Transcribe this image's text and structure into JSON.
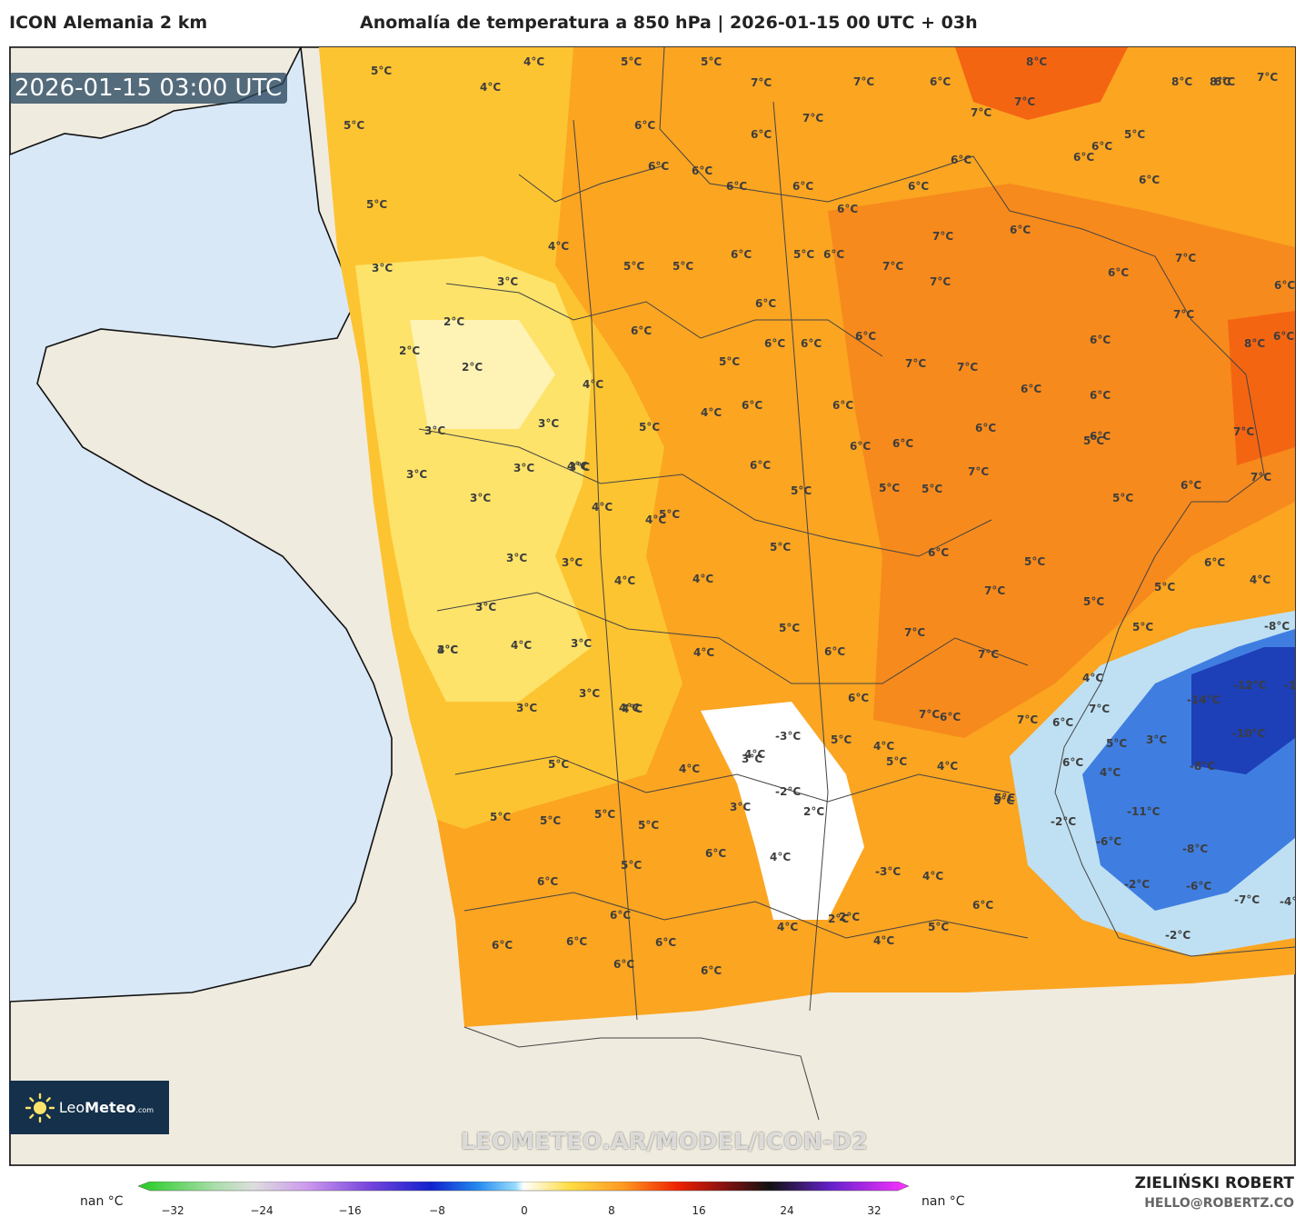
{
  "header": {
    "model": "ICON Alemania 2 km",
    "title": "Anomalía de temperatura a 850 hPa | 2026-01-15 00 UTC + 03h"
  },
  "map": {
    "timestamp": "2026-01-15 03:00 UTC",
    "watermark": "LEOMETEO.AR/MODEL/ICON-D2",
    "labels": [
      "5°C",
      "4°C",
      "5°C",
      "5°C",
      "8°C",
      "8°C",
      "8°C",
      "7°C",
      "4°C",
      "5°C",
      "6°C",
      "6°C",
      "7°C",
      "7°C",
      "5°C",
      "7°C",
      "6°C",
      "7°C",
      "6°C",
      "6°C",
      "7°C",
      "6°C",
      "6°C",
      "5°C",
      "5°C",
      "6°C",
      "6°C",
      "6°C",
      "6°C",
      "6°C",
      "6°C",
      "6°C",
      "6°C",
      "7°C",
      "6°C",
      "3°C",
      "4°C",
      "5°C",
      "5°C",
      "6°C",
      "6°C",
      "6°C",
      "7°C",
      "7°C",
      "6°C",
      "7°C",
      "7°C",
      "6°C",
      "2°C",
      "2°C",
      "2°C",
      "3°C",
      "6°C",
      "6°C",
      "6°C",
      "6°C",
      "7°C",
      "7°C",
      "6°C",
      "6°C",
      "8°C",
      "4°C",
      "5°C",
      "6°C",
      "6°C",
      "6°C",
      "5°C",
      "7°C",
      "3°C",
      "3°C",
      "4°C",
      "5°C",
      "6°C",
      "6°C",
      "6°C",
      "6°C",
      "3°C",
      "3°C",
      "3°C",
      "4°C",
      "6°C",
      "5°C",
      "5°C",
      "5°C",
      "7°C",
      "5°C",
      "6°C",
      "3°C",
      "4°C",
      "5°C",
      "4°C",
      "5°C",
      "6°C",
      "5°C",
      "7°C",
      "4°C",
      "3°C",
      "3°C",
      "4°C",
      "4°C",
      "7°C",
      "5°C",
      "5°C",
      "6°C",
      "3°C",
      "4°C",
      "3°C",
      "4°C",
      "5°C",
      "6°C",
      "7°C",
      "7°C",
      "5°C",
      "-8°C",
      "3°C",
      "3°C",
      "4°C",
      "6°C",
      "7°C",
      "4°C",
      "5°C",
      "4°C",
      "-12°C",
      "-13°C",
      "4°C",
      "3°C",
      "4°C",
      "6°C",
      "7°C",
      "6°C",
      "7°C",
      "-14°C",
      "-10°C",
      "-3°C",
      "5°C",
      "4°C",
      "3°C",
      "5°C",
      "4°C",
      "6°C",
      "3°C",
      "5°C",
      "-8°C",
      "5°C",
      "4°C",
      "-2°C",
      "5°C",
      "4°C",
      "3°C",
      "2°C",
      "-2°C",
      "-6°C",
      "-11°C",
      "5°C",
      "5°C",
      "5°C",
      "5°C",
      "4°C",
      "6°C",
      "-8°C",
      "-3°C",
      "4°C",
      "5°C",
      "2°C",
      "-2°C",
      "-6°C",
      "-7°C",
      "-4°C",
      "6°C",
      "6°C",
      "6°C",
      "4°C",
      "2°C",
      "6°C",
      "5°C",
      "4°C",
      "-2°C",
      "6°C",
      "6°C",
      "6°C",
      "6°C"
    ]
  },
  "legend": {
    "nan_left": "nan °C",
    "nan_right": "nan °C",
    "ticks": [
      "−32",
      "−24",
      "−16",
      "−8",
      "0",
      "8",
      "16",
      "24",
      "32"
    ]
  },
  "credits": {
    "author": "ZIELIŃSKI ROBERT",
    "email": "HELLO@ROBERTZ.CO",
    "logo_main": "Leo",
    "logo_bold": "Meteo",
    "logo_suffix": ".com"
  },
  "colors": {
    "sea": "#d9e8f6",
    "land": "#f0ebdf",
    "warm1": "#fde36a",
    "warm2": "#fdc431",
    "warm3": "#fba521",
    "warm4": "#f78a1c",
    "hot": "#f46512",
    "cold1": "#3f7ee0",
    "cold2": "#1d3fb8",
    "near0": "#ffffff"
  }
}
